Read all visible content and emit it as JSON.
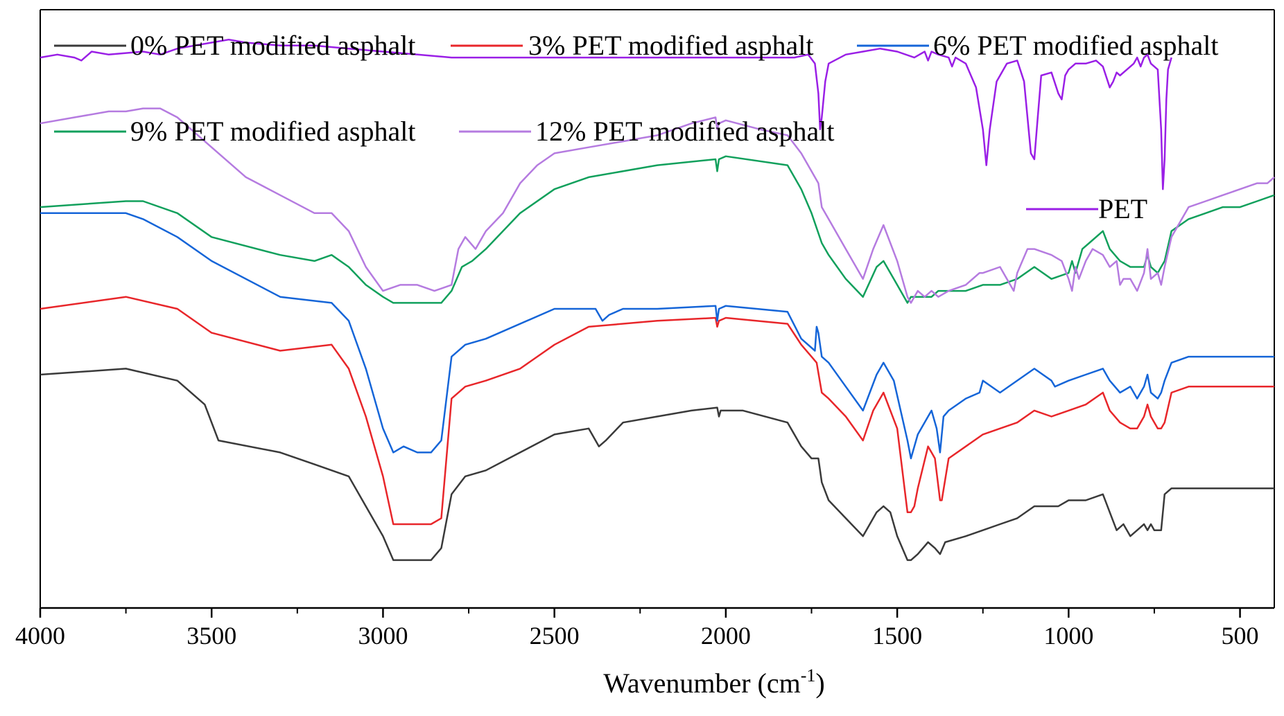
{
  "chart_data": {
    "type": "line",
    "title": "",
    "xlabel": "Wavenumber (cm",
    "xlabel_sup": "-1",
    "xlabel_close": ")",
    "ylabel": "",
    "xlim": [
      4000,
      400
    ],
    "x_reversed": true,
    "y_axis_ticks": false,
    "x_ticks": [
      4000,
      3500,
      3000,
      2500,
      2000,
      1500,
      1000,
      500
    ],
    "x_tick_labels": [
      "4000",
      "3500",
      "3000",
      "2500",
      "2000",
      "1500",
      "1000",
      "500"
    ],
    "y_units": "transmittance (arbitrary, vertically offset)",
    "ylim": [
      0,
      100
    ],
    "legend": [
      {
        "label": "0% PET modified asphalt",
        "color": "#3a3a3a"
      },
      {
        "label": "3% PET modified asphalt",
        "color": "#e8262a"
      },
      {
        "label": "6% PET modified asphalt",
        "color": "#1565d8"
      },
      {
        "label": "9% PET modified asphalt",
        "color": "#11a05c"
      },
      {
        "label": "12% PET modified asphalt",
        "color": "#b57be0"
      },
      {
        "label": "PET",
        "color": "#9a1fe6"
      }
    ],
    "series": [
      {
        "name": "0% PET modified asphalt",
        "color": "#3a3a3a",
        "x": [
          4000,
          3750,
          3600,
          3520,
          3480,
          3300,
          3200,
          3100,
          3050,
          3000,
          2970,
          2940,
          2900,
          2860,
          2830,
          2800,
          2760,
          2700,
          2600,
          2500,
          2400,
          2370,
          2350,
          2300,
          2200,
          2100,
          2025,
          2020,
          2015,
          1950,
          1820,
          1780,
          1750,
          1730,
          1720,
          1700,
          1650,
          1600,
          1560,
          1540,
          1520,
          1500,
          1470,
          1460,
          1440,
          1410,
          1390,
          1375,
          1360,
          1300,
          1250,
          1200,
          1150,
          1100,
          1050,
          1030,
          1000,
          950,
          900,
          880,
          860,
          840,
          820,
          800,
          780,
          770,
          760,
          750,
          730,
          720,
          700,
          650,
          600,
          550,
          500,
          450,
          400
        ],
        "y": [
          39.0,
          40.0,
          38.0,
          34.0,
          28.0,
          26.0,
          24.0,
          22.0,
          17.0,
          12.0,
          8.0,
          8.0,
          8.0,
          8.0,
          10.0,
          19.0,
          22.0,
          23.0,
          26.0,
          29.0,
          30.0,
          27.0,
          28.0,
          31.0,
          32.0,
          33.0,
          33.5,
          32.0,
          33.0,
          33.0,
          31.0,
          27.0,
          25.0,
          25.0,
          21.0,
          18.0,
          15.0,
          12.0,
          16.0,
          17.0,
          16.0,
          12.0,
          8.0,
          8.0,
          9.0,
          11.0,
          10.0,
          9.0,
          11.0,
          12.0,
          13.0,
          14.0,
          15.0,
          17.0,
          17.0,
          17.0,
          18.0,
          18.0,
          19.0,
          16.0,
          13.0,
          14.0,
          12.0,
          13.0,
          14.0,
          13.0,
          14.0,
          13.0,
          13.0,
          19.0,
          20.0,
          20.0,
          20.0,
          20.0,
          20.0,
          20.0,
          20.0
        ]
      },
      {
        "name": "3% PET modified asphalt",
        "color": "#e8262a",
        "x": [
          4000,
          3750,
          3600,
          3500,
          3300,
          3150,
          3100,
          3050,
          3000,
          2970,
          2940,
          2900,
          2860,
          2830,
          2800,
          2760,
          2700,
          2600,
          2500,
          2400,
          2200,
          2030,
          2025,
          2020,
          2000,
          1820,
          1780,
          1750,
          1735,
          1720,
          1700,
          1650,
          1600,
          1570,
          1540,
          1500,
          1470,
          1460,
          1450,
          1440,
          1410,
          1400,
          1390,
          1375,
          1370,
          1350,
          1300,
          1250,
          1200,
          1150,
          1100,
          1050,
          1000,
          950,
          900,
          880,
          850,
          820,
          800,
          780,
          770,
          760,
          740,
          730,
          720,
          700,
          650,
          600,
          550,
          500,
          450,
          400
        ],
        "y": [
          50.0,
          52.0,
          50.0,
          46.0,
          43.0,
          44.0,
          40.0,
          32.0,
          22.0,
          14.0,
          14.0,
          14.0,
          14.0,
          15.0,
          35.0,
          37.0,
          38.0,
          40.0,
          44.0,
          47.0,
          48.0,
          48.5,
          47.0,
          48.0,
          48.5,
          47.5,
          44.0,
          42.0,
          41.0,
          36.0,
          35.0,
          32.0,
          28.0,
          33.0,
          36.0,
          30.0,
          16.0,
          16.0,
          17.0,
          20.0,
          27.0,
          26.0,
          25.0,
          18.0,
          18.0,
          25.0,
          27.0,
          29.0,
          30.0,
          31.0,
          33.0,
          32.0,
          33.0,
          34.0,
          36.0,
          33.0,
          31.0,
          30.0,
          30.0,
          32.0,
          34.0,
          32.0,
          30.0,
          30.0,
          31.0,
          36.0,
          37.0,
          37.0,
          37.0,
          37.0,
          37.0,
          37.0
        ]
      },
      {
        "name": "6% PET modified asphalt",
        "color": "#1565d8",
        "x": [
          4000,
          3750,
          3700,
          3600,
          3500,
          3300,
          3150,
          3100,
          3050,
          3000,
          2970,
          2940,
          2900,
          2860,
          2830,
          2800,
          2760,
          2700,
          2500,
          2380,
          2360,
          2340,
          2300,
          2200,
          2030,
          2025,
          2020,
          2000,
          1820,
          1780,
          1740,
          1735,
          1730,
          1720,
          1700,
          1650,
          1600,
          1560,
          1540,
          1510,
          1470,
          1460,
          1440,
          1410,
          1400,
          1385,
          1375,
          1365,
          1350,
          1300,
          1260,
          1250,
          1200,
          1100,
          1050,
          1040,
          1000,
          950,
          900,
          880,
          850,
          820,
          800,
          780,
          770,
          760,
          740,
          730,
          720,
          700,
          650,
          550,
          500,
          400
        ],
        "y": [
          66.0,
          66.0,
          65.0,
          62.0,
          58.0,
          52.0,
          51.0,
          48.0,
          40.0,
          30.0,
          26.0,
          27.0,
          26.0,
          26.0,
          28.0,
          42.0,
          44.0,
          45.0,
          50.0,
          50.0,
          48.0,
          49.0,
          50.0,
          50.0,
          50.5,
          48.0,
          50.0,
          50.5,
          49.5,
          45.0,
          43.0,
          47.0,
          46.0,
          42.0,
          41.0,
          37.0,
          33.0,
          39.0,
          41.0,
          38.0,
          28.0,
          25.0,
          29.0,
          32.0,
          33.0,
          30.0,
          26.0,
          32.0,
          33.0,
          35.0,
          36.0,
          38.0,
          36.0,
          40.0,
          38.0,
          37.0,
          38.0,
          39.0,
          40.0,
          38.0,
          36.0,
          37.0,
          35.0,
          37.0,
          39.0,
          36.0,
          35.0,
          36.0,
          38.0,
          41.0,
          42.0,
          42.0,
          42.0,
          42.0
        ]
      },
      {
        "name": "9% PET modified asphalt",
        "color": "#11a05c",
        "x": [
          4000,
          3750,
          3700,
          3600,
          3500,
          3300,
          3200,
          3150,
          3100,
          3050,
          3000,
          2970,
          2900,
          2830,
          2800,
          2770,
          2740,
          2700,
          2600,
          2500,
          2400,
          2200,
          2030,
          2025,
          2020,
          2000,
          1820,
          1780,
          1750,
          1720,
          1700,
          1650,
          1600,
          1560,
          1540,
          1500,
          1470,
          1460,
          1420,
          1400,
          1380,
          1350,
          1300,
          1250,
          1200,
          1150,
          1100,
          1050,
          1000,
          990,
          980,
          960,
          940,
          900,
          880,
          850,
          820,
          800,
          780,
          770,
          760,
          740,
          730,
          720,
          700,
          650,
          600,
          550,
          500,
          450,
          400
        ],
        "y": [
          67.0,
          68.0,
          68.0,
          66.0,
          62.0,
          59.0,
          58.0,
          59.0,
          57.0,
          54.0,
          52.0,
          51.0,
          51.0,
          51.0,
          53.0,
          57.0,
          58.0,
          60.0,
          66.0,
          70.0,
          72.0,
          74.0,
          75.0,
          73.0,
          75.0,
          75.5,
          74.0,
          70.0,
          66.0,
          61.0,
          59.0,
          55.0,
          52.0,
          57.0,
          58.0,
          54.0,
          51.0,
          52.0,
          52.0,
          52.0,
          53.0,
          53.0,
          53.0,
          54.0,
          54.0,
          55.0,
          57.0,
          55.0,
          56.0,
          58.0,
          56.0,
          60.0,
          61.0,
          63.0,
          60.0,
          58.0,
          57.0,
          57.0,
          57.0,
          59.0,
          57.0,
          56.0,
          57.0,
          58.0,
          63.0,
          65.0,
          66.0,
          67.0,
          67.0,
          68.0,
          69.0
        ]
      },
      {
        "name": "12% PET modified asphalt",
        "color": "#b57be0",
        "x": [
          4000,
          3900,
          3800,
          3750,
          3700,
          3650,
          3600,
          3500,
          3400,
          3300,
          3200,
          3150,
          3100,
          3050,
          3000,
          2950,
          2900,
          2850,
          2800,
          2780,
          2760,
          2730,
          2700,
          2650,
          2600,
          2550,
          2500,
          2400,
          2300,
          2200,
          2100,
          2030,
          2025,
          2020,
          2000,
          1900,
          1820,
          1780,
          1750,
          1730,
          1720,
          1700,
          1650,
          1600,
          1570,
          1540,
          1500,
          1470,
          1460,
          1440,
          1420,
          1400,
          1380,
          1350,
          1300,
          1260,
          1250,
          1200,
          1160,
          1150,
          1120,
          1100,
          1050,
          1020,
          1000,
          990,
          980,
          970,
          950,
          930,
          900,
          880,
          860,
          850,
          840,
          820,
          800,
          780,
          770,
          760,
          740,
          730,
          720,
          700,
          650,
          600,
          550,
          500,
          450,
          420,
          400
        ],
        "y": [
          81.0,
          82.0,
          83.0,
          83.0,
          83.5,
          83.5,
          82.0,
          77.0,
          72.0,
          69.0,
          66.0,
          66.0,
          63.0,
          57.0,
          53.0,
          54.0,
          54.0,
          53.0,
          54.0,
          60.0,
          62.0,
          60.0,
          63.0,
          66.0,
          71.0,
          74.0,
          76.0,
          77.0,
          78.0,
          79.0,
          81.0,
          82.0,
          80.0,
          81.0,
          81.5,
          80.0,
          79.0,
          76.0,
          73.0,
          71.0,
          67.0,
          65.0,
          60.0,
          55.0,
          60.0,
          64.0,
          58.0,
          52.0,
          51.0,
          53.0,
          52.0,
          53.0,
          52.0,
          53.0,
          54.0,
          56.0,
          56.0,
          57.0,
          53.0,
          56.0,
          60.0,
          60.0,
          59.0,
          58.0,
          55.0,
          53.0,
          57.0,
          55.0,
          58.0,
          60.0,
          59.0,
          57.0,
          58.0,
          54.0,
          55.0,
          55.0,
          53.0,
          56.0,
          60.0,
          55.0,
          56.0,
          54.0,
          57.0,
          62.0,
          67.0,
          68.0,
          69.0,
          70.0,
          71.0,
          71.0,
          72.0
        ]
      },
      {
        "name": "PET",
        "color": "#9a1fe6",
        "x": [
          4000,
          3950,
          3900,
          3880,
          3850,
          3800,
          3700,
          3650,
          3600,
          3550,
          3500,
          3450,
          3400,
          3300,
          3200,
          3100,
          3000,
          2900,
          2800,
          2700,
          2600,
          2500,
          2400,
          2300,
          2200,
          2100,
          2000,
          1900,
          1800,
          1760,
          1740,
          1730,
          1725,
          1720,
          1710,
          1700,
          1650,
          1600,
          1550,
          1500,
          1450,
          1420,
          1410,
          1400,
          1380,
          1350,
          1340,
          1330,
          1300,
          1270,
          1250,
          1240,
          1230,
          1210,
          1180,
          1150,
          1130,
          1120,
          1110,
          1100,
          1090,
          1080,
          1050,
          1030,
          1020,
          1010,
          1000,
          980,
          950,
          920,
          900,
          880,
          870,
          860,
          850,
          830,
          810,
          800,
          790,
          780,
          770,
          760,
          740,
          730,
          725,
          720,
          715,
          710,
          700
        ],
        "y": [
          92.0,
          92.5,
          92.0,
          91.5,
          93.0,
          92.5,
          93.0,
          92.5,
          93.5,
          94.0,
          94.5,
          95.0,
          94.5,
          94.0,
          94.0,
          93.5,
          93.0,
          92.5,
          92.0,
          92.0,
          92.0,
          92.0,
          92.0,
          92.0,
          92.0,
          92.0,
          92.0,
          92.0,
          92.0,
          92.5,
          91.0,
          86.0,
          80.0,
          82.0,
          88.0,
          91.0,
          92.5,
          93.0,
          93.5,
          93.0,
          92.0,
          93.0,
          91.5,
          93.0,
          92.5,
          92.0,
          90.5,
          92.0,
          91.0,
          87.0,
          80.0,
          74.0,
          80.0,
          88.0,
          91.0,
          91.5,
          88.0,
          82.0,
          76.0,
          75.0,
          82.0,
          89.0,
          89.5,
          86.0,
          85.0,
          89.0,
          90.0,
          91.0,
          91.0,
          91.5,
          90.5,
          87.0,
          88.0,
          89.5,
          89.0,
          90.0,
          91.0,
          92.0,
          90.5,
          92.0,
          92.5,
          91.0,
          90.0,
          80.0,
          70.0,
          75.0,
          85.0,
          90.0,
          92.0
        ]
      }
    ]
  }
}
